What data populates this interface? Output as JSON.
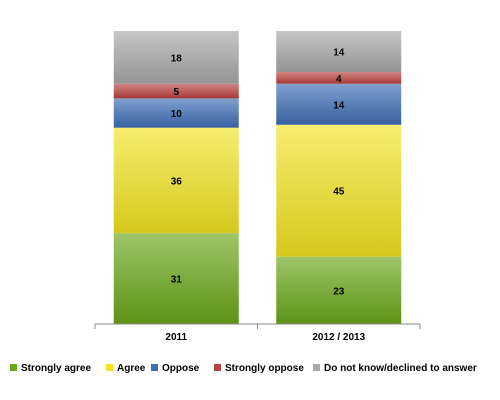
{
  "chart_data": {
    "type": "bar",
    "stacked": true,
    "normalized_percent": true,
    "categories": [
      "2011",
      "2012 / 2013"
    ],
    "series": [
      {
        "name": "Strongly agree",
        "values": [
          31,
          23
        ],
        "color": "#6aa618"
      },
      {
        "name": "Agree",
        "values": [
          36,
          45
        ],
        "color": "#f3e321"
      },
      {
        "name": "Oppose",
        "values": [
          10,
          14
        ],
        "color": "#3d6db6"
      },
      {
        "name": "Strongly oppose",
        "values": [
          5,
          4
        ],
        "color": "#b9423f"
      },
      {
        "name": "Do not know/declined to answer",
        "values": [
          18,
          14
        ],
        "color": "#a8a8a8"
      }
    ],
    "legend_position": "bottom",
    "grid": false,
    "title": "",
    "xlabel": "",
    "ylabel": ""
  }
}
